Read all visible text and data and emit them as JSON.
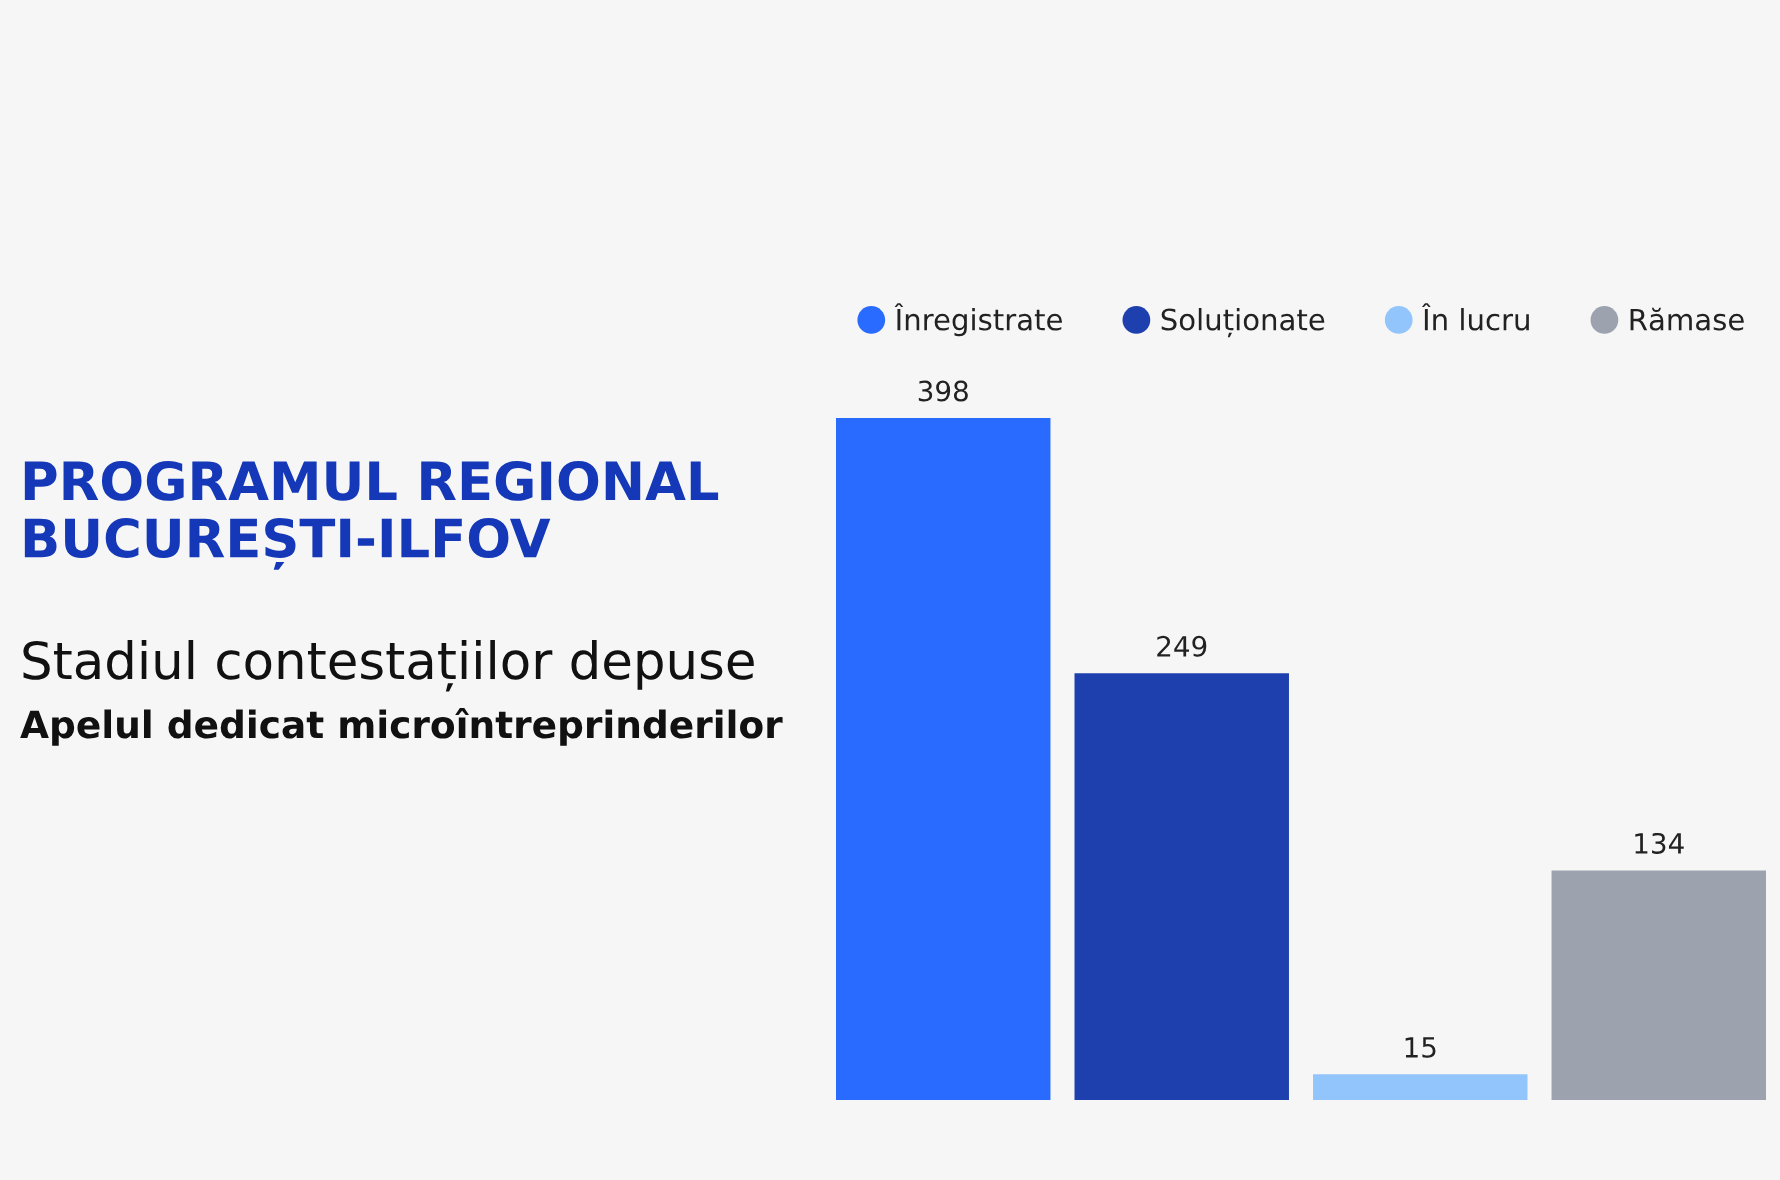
{
  "chart_data": {
    "type": "bar",
    "title": "PROGRAMUL REGIONAL\nBUCUREȘTI-ILFOV",
    "subtitle": "Stadiul contestațiilor depuse",
    "annotations": [
      "Apelul dedicat microîntreprinderilor"
    ],
    "categories": [
      null
    ],
    "series": [
      {
        "name": "Înregistrate",
        "color": "#2a6bff",
        "values": [
          398
        ]
      },
      {
        "name": "Soluționate",
        "color": "#1e40af",
        "values": [
          249
        ]
      },
      {
        "name": "În lucru",
        "color": "#93c5fd",
        "values": [
          15
        ]
      },
      {
        "name": "Rămase",
        "color": "#9ca3af",
        "values": [
          134
        ]
      }
    ],
    "data_labels": true,
    "legend": "top",
    "tick_labels": false
  }
}
